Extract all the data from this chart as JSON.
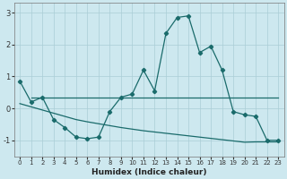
{
  "xlabel": "Humidex (Indice chaleur)",
  "background_color": "#cde8ef",
  "grid_color": "#aacdd6",
  "line_color": "#1a6b6b",
  "xlim": [
    -0.5,
    23.5
  ],
  "ylim": [
    -1.5,
    3.3
  ],
  "yticks": [
    -1,
    0,
    1,
    2,
    3
  ],
  "xticks": [
    0,
    1,
    2,
    3,
    4,
    5,
    6,
    7,
    8,
    9,
    10,
    11,
    12,
    13,
    14,
    15,
    16,
    17,
    18,
    19,
    20,
    21,
    22,
    23
  ],
  "curve_main_x": [
    0,
    1,
    2,
    3,
    4,
    5,
    6,
    7,
    8,
    9,
    10,
    11,
    12,
    13,
    14,
    15,
    16,
    17,
    18,
    19,
    20,
    21,
    22,
    23
  ],
  "curve_main_y": [
    0.85,
    0.2,
    0.35,
    -0.35,
    -0.6,
    -0.9,
    -0.95,
    -0.9,
    -0.1,
    0.35,
    0.45,
    1.2,
    0.55,
    2.35,
    2.85,
    2.9,
    1.75,
    1.95,
    1.2,
    -0.1,
    -0.2,
    -0.25,
    -1.0,
    -1.0
  ],
  "curve_flat_x": [
    1,
    2,
    3,
    4,
    5,
    6,
    7,
    8,
    9,
    10,
    11,
    12,
    13,
    14,
    15,
    16,
    17,
    18,
    19,
    20,
    21,
    22,
    23
  ],
  "curve_flat_y": [
    0.35,
    0.35,
    0.35,
    0.35,
    0.35,
    0.35,
    0.35,
    0.35,
    0.35,
    0.35,
    0.35,
    0.35,
    0.35,
    0.35,
    0.35,
    0.35,
    0.35,
    0.35,
    0.35,
    0.35,
    0.35,
    0.35,
    0.35
  ],
  "curve_slope_x": [
    0,
    1,
    2,
    3,
    4,
    5,
    6,
    7,
    8,
    9,
    10,
    11,
    12,
    13,
    14,
    15,
    16,
    17,
    18,
    19,
    20,
    21,
    22,
    23
  ],
  "curve_slope_y": [
    0.15,
    0.05,
    -0.05,
    -0.15,
    -0.25,
    -0.35,
    -0.42,
    -0.48,
    -0.54,
    -0.6,
    -0.65,
    -0.7,
    -0.74,
    -0.78,
    -0.82,
    -0.86,
    -0.9,
    -0.94,
    -0.98,
    -1.02,
    -1.06,
    -1.05,
    -1.05,
    -1.05
  ]
}
